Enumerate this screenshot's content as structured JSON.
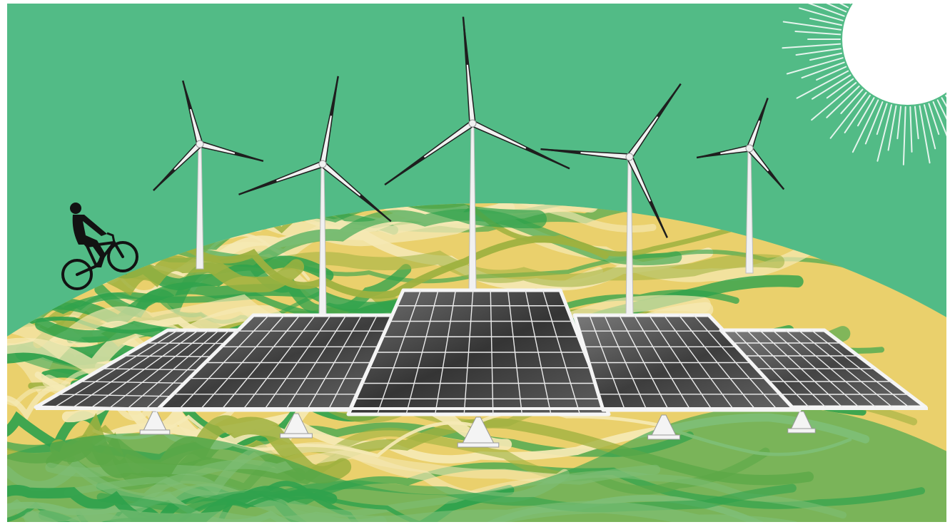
{
  "scene": {
    "colors": {
      "sky": "#52bb86",
      "earth_yellow": "#ead06c",
      "earth_cream": "#f5e9b4",
      "earth_green": "#2fa24c",
      "earth_olive": "#9eb13f",
      "panel_dark": "#2b2b2b",
      "panel_mid": "#4a4a4a",
      "panel_grid": "#e9e9e9",
      "frame_white": "#f4f4f4",
      "turbine_white": "#f1f1f1",
      "turbine_dark": "#1e1e1e",
      "sun": "#ffffff",
      "silhouette": "#121212"
    },
    "elements": {
      "sun": "sun-icon",
      "turbine": "wind-turbine-icon",
      "panel": "solar-panel-icon",
      "cyclist": "cyclist-silhouette-icon"
    }
  }
}
